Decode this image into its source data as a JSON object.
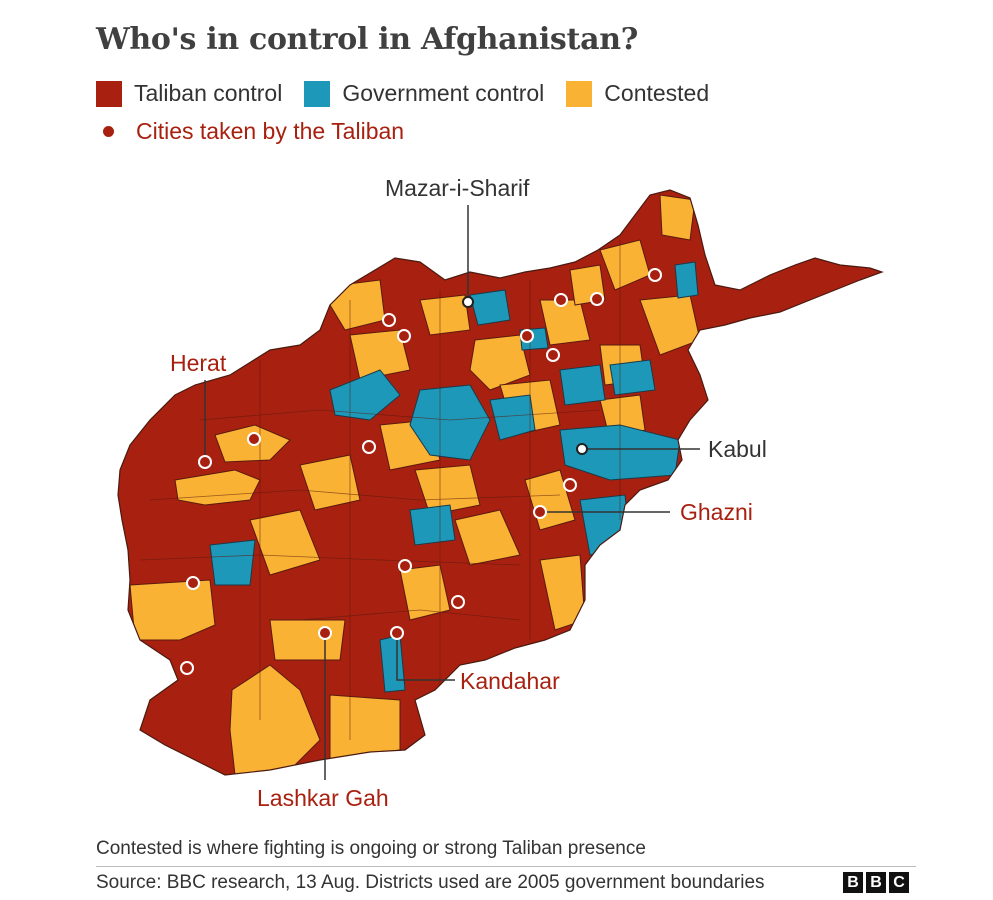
{
  "title": "Who's in control in Afghanistan?",
  "legend": {
    "taliban": {
      "label": "Taliban control",
      "color": "#a8200f"
    },
    "government": {
      "label": "Government control",
      "color": "#1e98b8"
    },
    "contested": {
      "label": "Contested",
      "color": "#f9b233"
    },
    "cities": {
      "label": "Cities taken by the Taliban",
      "color": "#a8200f"
    }
  },
  "labels": {
    "mazar": "Mazar-i-Sharif",
    "herat": "Herat",
    "kabul": "Kabul",
    "ghazni": "Ghazni",
    "kandahar": "Kandahar",
    "lashkar": "Lashkar Gah"
  },
  "footnote": "Contested is where fighting is ongoing or strong Taliban presence",
  "source": "Source: BBC research, 13 Aug. Districts used are 2005 government boundaries",
  "logo": [
    "B",
    "B",
    "C"
  ]
}
